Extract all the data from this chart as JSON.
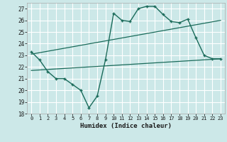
{
  "title": "",
  "xlabel": "Humidex (Indice chaleur)",
  "ylabel": "",
  "bg_color": "#cce8e8",
  "grid_color": "#ffffff",
  "line_color": "#1a6b5a",
  "ylim": [
    18,
    27.5
  ],
  "xlim": [
    -0.5,
    23.5
  ],
  "yticks": [
    18,
    19,
    20,
    21,
    22,
    23,
    24,
    25,
    26,
    27
  ],
  "xticks": [
    0,
    1,
    2,
    3,
    4,
    5,
    6,
    7,
    8,
    9,
    10,
    11,
    12,
    13,
    14,
    15,
    16,
    17,
    18,
    19,
    20,
    21,
    22,
    23
  ],
  "main_x": [
    0,
    1,
    2,
    3,
    4,
    5,
    6,
    7,
    8,
    9,
    10,
    11,
    12,
    13,
    14,
    15,
    16,
    17,
    18,
    19,
    20,
    21,
    22,
    23
  ],
  "main_y": [
    23.3,
    22.6,
    21.6,
    21.0,
    21.0,
    20.5,
    20.0,
    18.5,
    19.5,
    22.6,
    26.6,
    26.0,
    25.9,
    27.0,
    27.2,
    27.2,
    26.5,
    25.9,
    25.8,
    26.1,
    24.5,
    23.0,
    22.7,
    22.7
  ],
  "trend1_x": [
    0,
    23
  ],
  "trend1_y": [
    23.1,
    26.0
  ],
  "trend2_x": [
    0,
    23
  ],
  "trend2_y": [
    21.7,
    22.7
  ],
  "figsize": [
    3.2,
    2.0
  ],
  "dpi": 100
}
